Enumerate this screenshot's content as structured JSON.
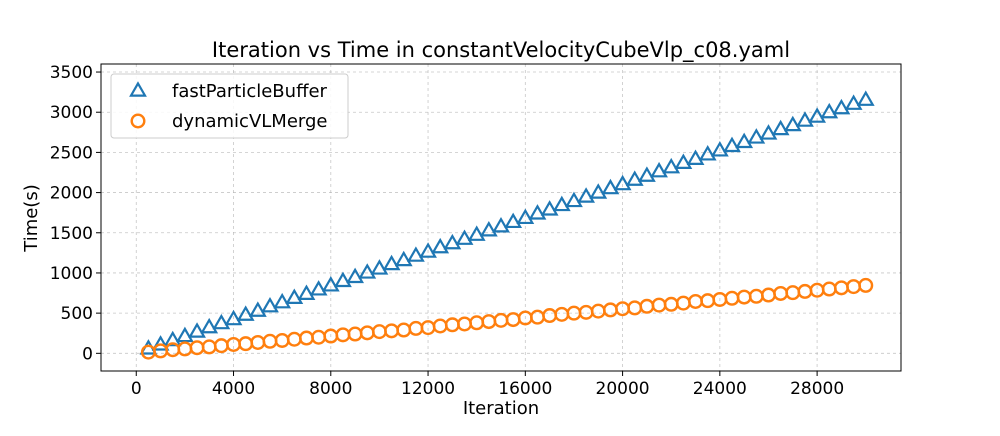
{
  "chart_data": {
    "type": "scatter",
    "title": "Iteration vs Time in constantVelocityCubeVlp_c08.yaml",
    "xlabel": "Iteration",
    "ylabel": "Time(s)",
    "xlim": [
      -1450,
      31450
    ],
    "ylim": [
      -220,
      3600
    ],
    "xticks": [
      0,
      4000,
      8000,
      12000,
      16000,
      20000,
      24000,
      28000
    ],
    "yticks": [
      0,
      500,
      1000,
      1500,
      2000,
      2500,
      3000,
      3500
    ],
    "grid": true,
    "legend_position": "upper-left",
    "series": [
      {
        "name": "fastParticleBuffer",
        "marker": "triangle",
        "color": "#1f77b4",
        "x": [
          500,
          1000,
          1500,
          2000,
          2500,
          3000,
          3500,
          4000,
          4500,
          5000,
          5500,
          6000,
          6500,
          7000,
          7500,
          8000,
          8500,
          9000,
          9500,
          10000,
          10500,
          11000,
          11500,
          12000,
          12500,
          13000,
          13500,
          14000,
          14500,
          15000,
          15500,
          16000,
          16500,
          17000,
          17500,
          18000,
          18500,
          19000,
          19500,
          20000,
          20500,
          21000,
          21500,
          22000,
          22500,
          23000,
          23500,
          24000,
          24500,
          25000,
          25500,
          26000,
          26500,
          27000,
          27500,
          28000,
          28500,
          29000,
          29500,
          30000
        ],
        "y": [
          55,
          105,
          160,
          210,
          265,
          320,
          370,
          420,
          475,
          525,
          580,
          630,
          685,
          735,
          790,
          840,
          895,
          945,
          1000,
          1050,
          1105,
          1155,
          1210,
          1260,
          1315,
          1365,
          1420,
          1470,
          1525,
          1575,
          1630,
          1680,
          1735,
          1785,
          1840,
          1890,
          1945,
          1995,
          2050,
          2100,
          2155,
          2205,
          2260,
          2310,
          2365,
          2415,
          2470,
          2520,
          2575,
          2625,
          2680,
          2730,
          2785,
          2835,
          2890,
          2940,
          2995,
          3045,
          3100,
          3150
        ]
      },
      {
        "name": "dynamicVLMerge",
        "marker": "circle",
        "color": "#ff7f0e",
        "x": [
          500,
          1000,
          1500,
          2000,
          2500,
          3000,
          3500,
          4000,
          4500,
          5000,
          5500,
          6000,
          6500,
          7000,
          7500,
          8000,
          8500,
          9000,
          9500,
          10000,
          10500,
          11000,
          11500,
          12000,
          12500,
          13000,
          13500,
          14000,
          14500,
          15000,
          15500,
          16000,
          16500,
          17000,
          17500,
          18000,
          18500,
          19000,
          19500,
          20000,
          20500,
          21000,
          21500,
          22000,
          22500,
          23000,
          23500,
          24000,
          24500,
          25000,
          25500,
          26000,
          26500,
          27000,
          27500,
          28000,
          28500,
          29000,
          29500,
          30000
        ],
        "y": [
          15,
          30,
          45,
          55,
          70,
          80,
          95,
          110,
          120,
          135,
          150,
          160,
          175,
          190,
          200,
          215,
          230,
          240,
          255,
          270,
          280,
          290,
          310,
          320,
          340,
          355,
          365,
          380,
          395,
          410,
          420,
          440,
          450,
          470,
          485,
          500,
          510,
          525,
          540,
          555,
          565,
          585,
          600,
          610,
          625,
          645,
          655,
          670,
          685,
          700,
          710,
          725,
          745,
          755,
          770,
          785,
          800,
          815,
          830,
          845
        ]
      }
    ]
  }
}
